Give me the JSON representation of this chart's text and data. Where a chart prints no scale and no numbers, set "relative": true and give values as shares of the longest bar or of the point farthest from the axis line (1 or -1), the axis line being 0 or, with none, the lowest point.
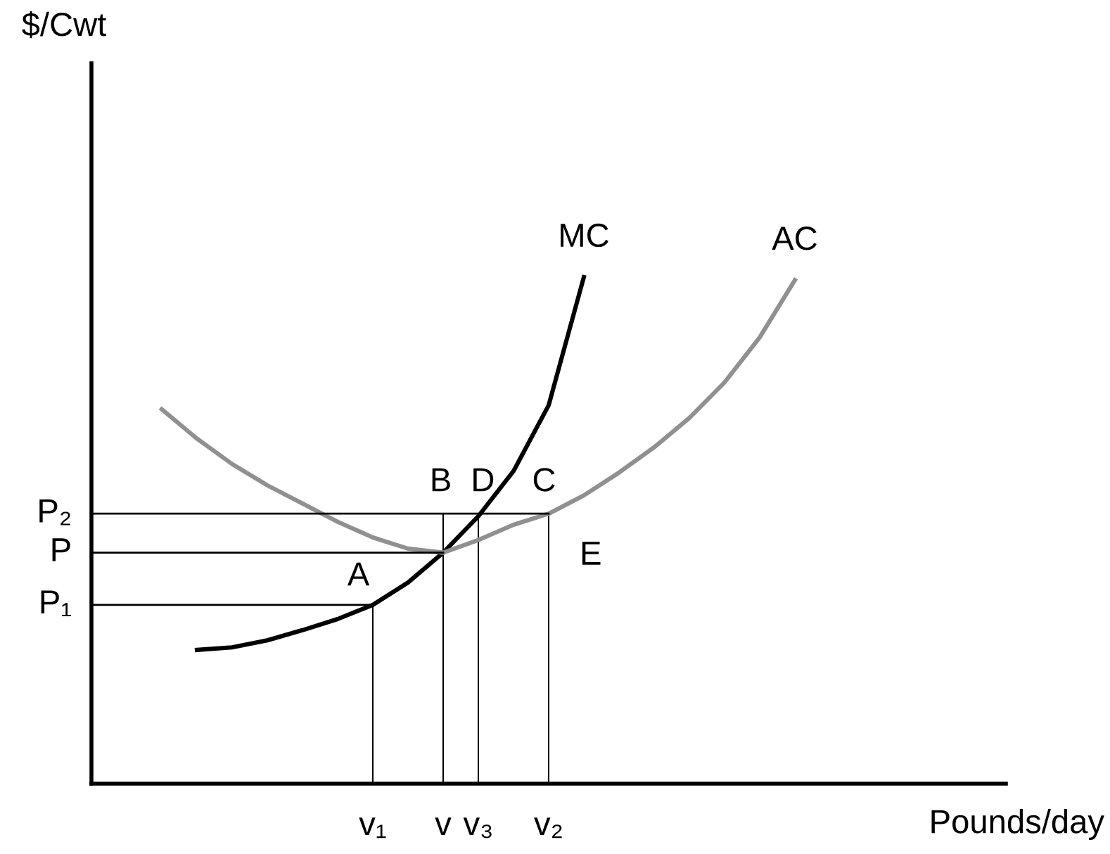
{
  "chart_data": {
    "type": "line",
    "relative": true,
    "xlabel": "Pounds/day",
    "marker": "none",
    "categories": [
      null,
      null,
      null,
      null,
      null,
      null,
      null,
      null,
      "v₁",
      null,
      "v",
      "v₃",
      null,
      "v₂",
      null,
      null,
      null,
      null,
      null,
      null,
      null,
      null,
      null,
      null,
      null,
      null,
      null
    ],
    "series": [
      {
        "name": "MC",
        "color": "#000000",
        "values": [
          null,
          null,
          null,
          0.264,
          0.269,
          0.283,
          0.303,
          0.325,
          0.353,
          0.397,
          0.456,
          0.528,
          0.617,
          0.747,
          1.0,
          null,
          null,
          null,
          null,
          null,
          null,
          null,
          null,
          null,
          null,
          null,
          null
        ]
      },
      {
        "name": "AC",
        "color": "#909090",
        "values": [
          null,
          null,
          0.739,
          0.681,
          0.631,
          0.589,
          0.553,
          0.517,
          0.486,
          0.464,
          0.456,
          0.481,
          0.511,
          0.533,
          0.569,
          0.614,
          0.664,
          0.722,
          0.792,
          0.881,
          0.994,
          null,
          null,
          null,
          null,
          null,
          null
        ]
      },
      {
        "name": "P₂",
        "color": "#000000",
        "values": [
          0.533,
          0.533,
          0.533,
          0.533,
          0.533,
          0.533,
          0.533,
          0.533,
          0.533,
          0.533,
          0.533,
          0.533,
          0.533,
          0.533,
          null,
          null,
          null,
          null,
          null,
          null,
          null,
          null,
          null,
          null,
          null,
          null,
          null
        ]
      },
      {
        "name": "P",
        "color": "#000000",
        "values": [
          0.456,
          0.456,
          0.456,
          0.456,
          0.456,
          0.456,
          0.456,
          0.456,
          0.456,
          0.456,
          0.456,
          null,
          null,
          null,
          null,
          null,
          null,
          null,
          null,
          null,
          null,
          null,
          null,
          null,
          null,
          null,
          null
        ]
      },
      {
        "name": "P₁",
        "color": "#000000",
        "values": [
          0.353,
          0.353,
          0.353,
          0.353,
          0.353,
          0.353,
          0.353,
          0.353,
          0.353,
          null,
          null,
          null,
          null,
          null,
          null,
          null,
          null,
          null,
          null,
          null,
          null,
          null,
          null,
          null,
          null,
          null,
          null
        ]
      },
      {
        "type": "bar",
        "color": "#000000",
        "values": [
          null,
          null,
          null,
          null,
          null,
          null,
          null,
          null,
          0.353,
          null,
          0.533,
          0.533,
          null,
          0.533,
          null,
          null,
          null,
          null,
          null,
          null,
          null,
          null,
          null,
          null,
          null,
          null,
          null
        ]
      }
    ],
    "annotations": [
      "A",
      "B",
      "D",
      "C",
      "E",
      "$/Cwt"
    ]
  }
}
